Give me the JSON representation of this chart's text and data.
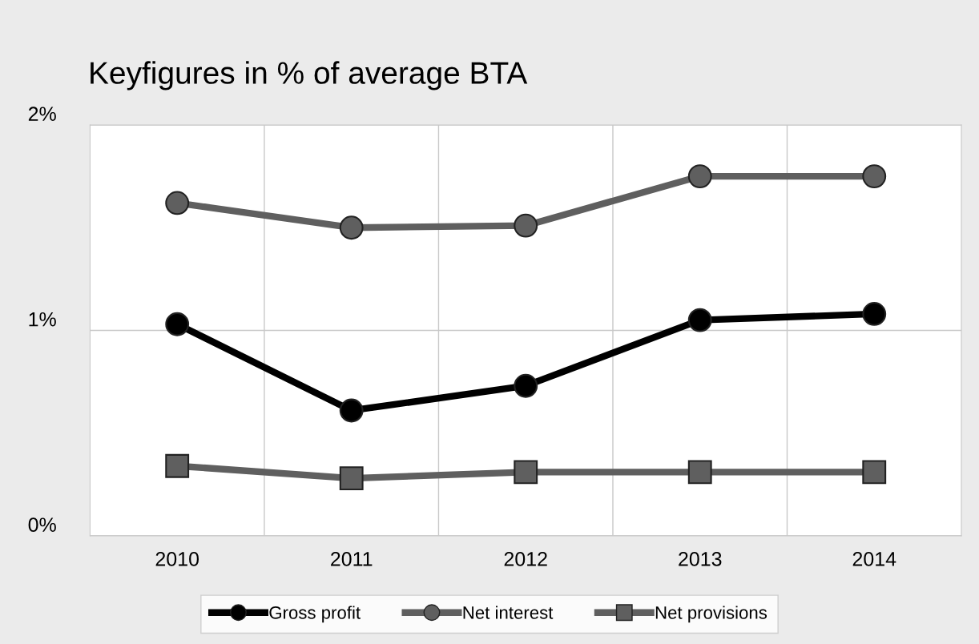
{
  "chart_data": {
    "type": "line",
    "title": "Keyfigures in % of average BTA",
    "categories": [
      "2010",
      "2011",
      "2012",
      "2013",
      "2014"
    ],
    "series": [
      {
        "name": "Gross profit",
        "color": "#000000",
        "marker": "circle",
        "values": [
          1.03,
          0.61,
          0.73,
          1.05,
          1.08
        ]
      },
      {
        "name": "Net interest",
        "color": "#5f5f5f",
        "marker": "circle",
        "values": [
          1.62,
          1.5,
          1.51,
          1.75,
          1.75
        ]
      },
      {
        "name": "Net provisions",
        "color": "#5f5f5f",
        "marker": "square",
        "values": [
          0.34,
          0.28,
          0.31,
          0.31,
          0.31
        ]
      }
    ],
    "ylim": [
      0,
      2
    ],
    "yticks": [
      {
        "value": 0,
        "label": "0%"
      },
      {
        "value": 1,
        "label": "1%"
      },
      {
        "value": 2,
        "label": "2%"
      }
    ],
    "grid": true,
    "legend": "bottom",
    "line_style": "solid"
  }
}
